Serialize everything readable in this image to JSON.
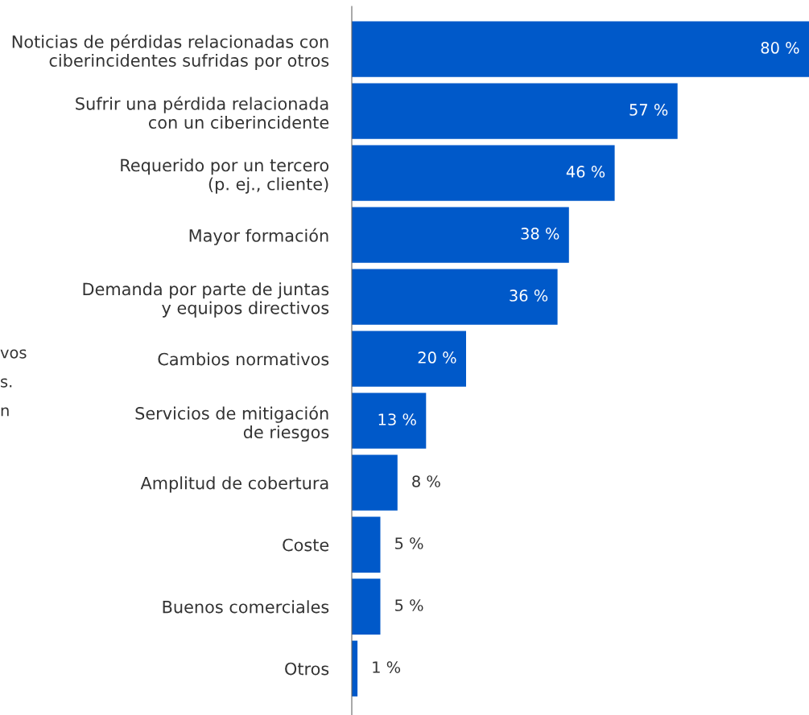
{
  "chart_data": {
    "type": "bar",
    "orientation": "horizontal",
    "categories": [
      "Noticias de pérdidas relacionadas con\nciberincidentes sufridas por otros",
      "Sufrir una pérdida relacionada\ncon un ciberincidente",
      "Requerido por un tercero\n(p. ej., cliente)",
      "Mayor formación",
      "Demanda por parte de juntas\ny equipos directivos",
      "Cambios normativos",
      "Servicios de mitigación\nde riesgos",
      "Amplitud de cobertura",
      "Coste",
      "Buenos comerciales",
      "Otros"
    ],
    "values": [
      80,
      57,
      46,
      38,
      36,
      20,
      13,
      8,
      5,
      5,
      1
    ],
    "value_labels": [
      "80 %",
      "57 %",
      "46 %",
      "38 %",
      "36 %",
      "20 %",
      "13 %",
      "8 %",
      "5 %",
      "5 %",
      "1 %"
    ],
    "color": "#0059c9",
    "annotations": [
      "vos",
      "s.",
      "n"
    ],
    "grid": false,
    "legend": false
  }
}
